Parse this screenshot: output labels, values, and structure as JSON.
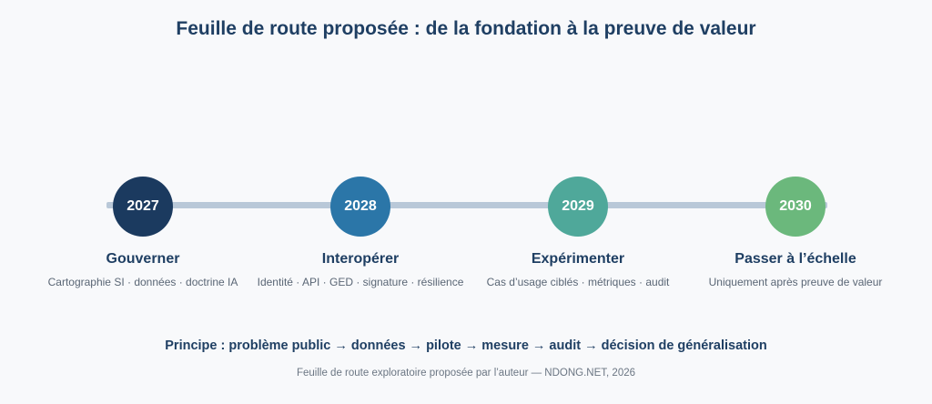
{
  "title": "Feuille de route proposée : de la fondation à la preuve de valeur",
  "milestones": [
    {
      "year": "2027",
      "phase": "Gouverner",
      "desc": "Cartographie SI · données · doctrine IA",
      "color": "#1b3a5f"
    },
    {
      "year": "2028",
      "phase": "Interopérer",
      "desc": "Identité · API · GED · signature · résilience",
      "color": "#2b76a8"
    },
    {
      "year": "2029",
      "phase": "Expérimenter",
      "desc": "Cas d’usage ciblés · métriques · audit",
      "color": "#4fa89a"
    },
    {
      "year": "2030",
      "phase": "Passer à l’échelle",
      "desc": "Uniquement après preuve de valeur",
      "color": "#6bb87c"
    }
  ],
  "principle": "Principe : problème public → données → pilote → mesure → audit → décision de généralisation",
  "footer": "Feuille de route exploratoire proposée par l’auteur — NDONG.NET, 2026"
}
